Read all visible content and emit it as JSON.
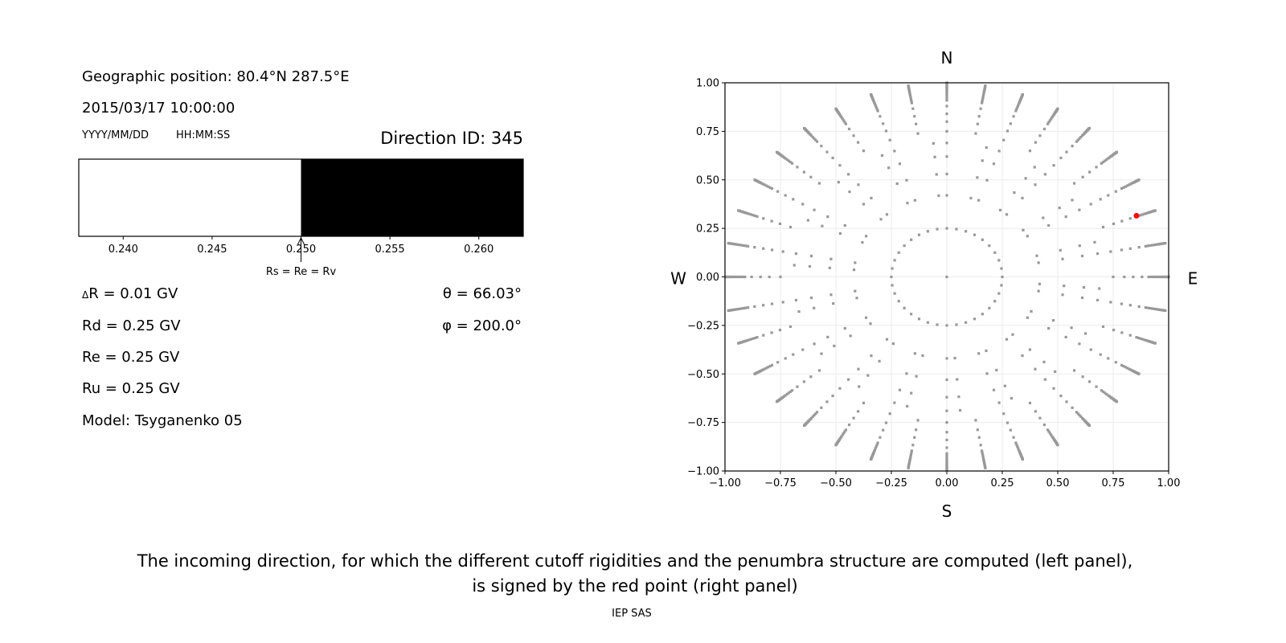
{
  "left_panel": {
    "geo_position": "Geographic position: 80.4°N 287.5°E",
    "datetime": "2015/03/17 10:00:00",
    "date_format": "YYYY/MM/DD",
    "time_format": "HH:MM:SS",
    "direction_id": "Direction ID: 345",
    "delta_r_symbol": "Δ",
    "delta_r": "R = 0.01 GV",
    "rd": "Rd = 0.25 GV",
    "re": "Re = 0.25 GV",
    "ru": "Ru = 0.25 GV",
    "model": "Model: Tsyganenko 05",
    "theta": "θ = 66.03°",
    "phi": "φ = 200.0°"
  },
  "caption": {
    "line1": "The incoming direction, for which the different cutoff rigidities and the penumbra structure are computed (left panel),",
    "line2": "is signed by the red point (right panel)",
    "credit": "IEP SAS"
  },
  "chart_data": [
    {
      "type": "bar",
      "description_role": "penumbra",
      "xlim": [
        0.2375,
        0.2625
      ],
      "ticks": [
        "0.240",
        "0.245",
        "0.250",
        "0.255",
        "0.260"
      ],
      "tick_values": [
        0.24,
        0.245,
        0.25,
        0.255,
        0.26
      ],
      "segments": [
        {
          "from": 0.2375,
          "to": 0.25,
          "color": "#ffffff"
        },
        {
          "from": 0.25,
          "to": 0.2625,
          "color": "#000000"
        }
      ],
      "annotation": {
        "text": "Rs = Re = Rv",
        "x": 0.25
      }
    },
    {
      "type": "scatter",
      "xlim": [
        -1,
        1
      ],
      "ylim": [
        -1,
        1
      ],
      "grid": true,
      "ticks": [
        "−1.00",
        "−0.75",
        "−0.50",
        "−0.25",
        "0.00",
        "0.25",
        "0.50",
        "0.75",
        "1.00"
      ],
      "tick_values": [
        -1,
        -0.75,
        -0.5,
        -0.25,
        0,
        0.25,
        0.5,
        0.75,
        1
      ],
      "compass": {
        "n": "N",
        "s": "S",
        "w": "W",
        "e": "E"
      },
      "point_color": "#999999",
      "highlight_color": "#ff0000",
      "grid_points": {
        "azimuth_step_deg": 10,
        "radii": [
          0.42,
          0.53,
          0.62,
          0.69,
          0.75,
          0.8,
          0.84,
          0.88,
          0.91,
          0.93,
          0.95,
          0.965,
          0.975,
          0.985,
          0.993,
          1.0
        ],
        "inner_ring_radius": 0.25,
        "center": [
          0,
          0
        ]
      },
      "highlight_point": {
        "x": 0.855,
        "y": 0.315
      }
    }
  ]
}
